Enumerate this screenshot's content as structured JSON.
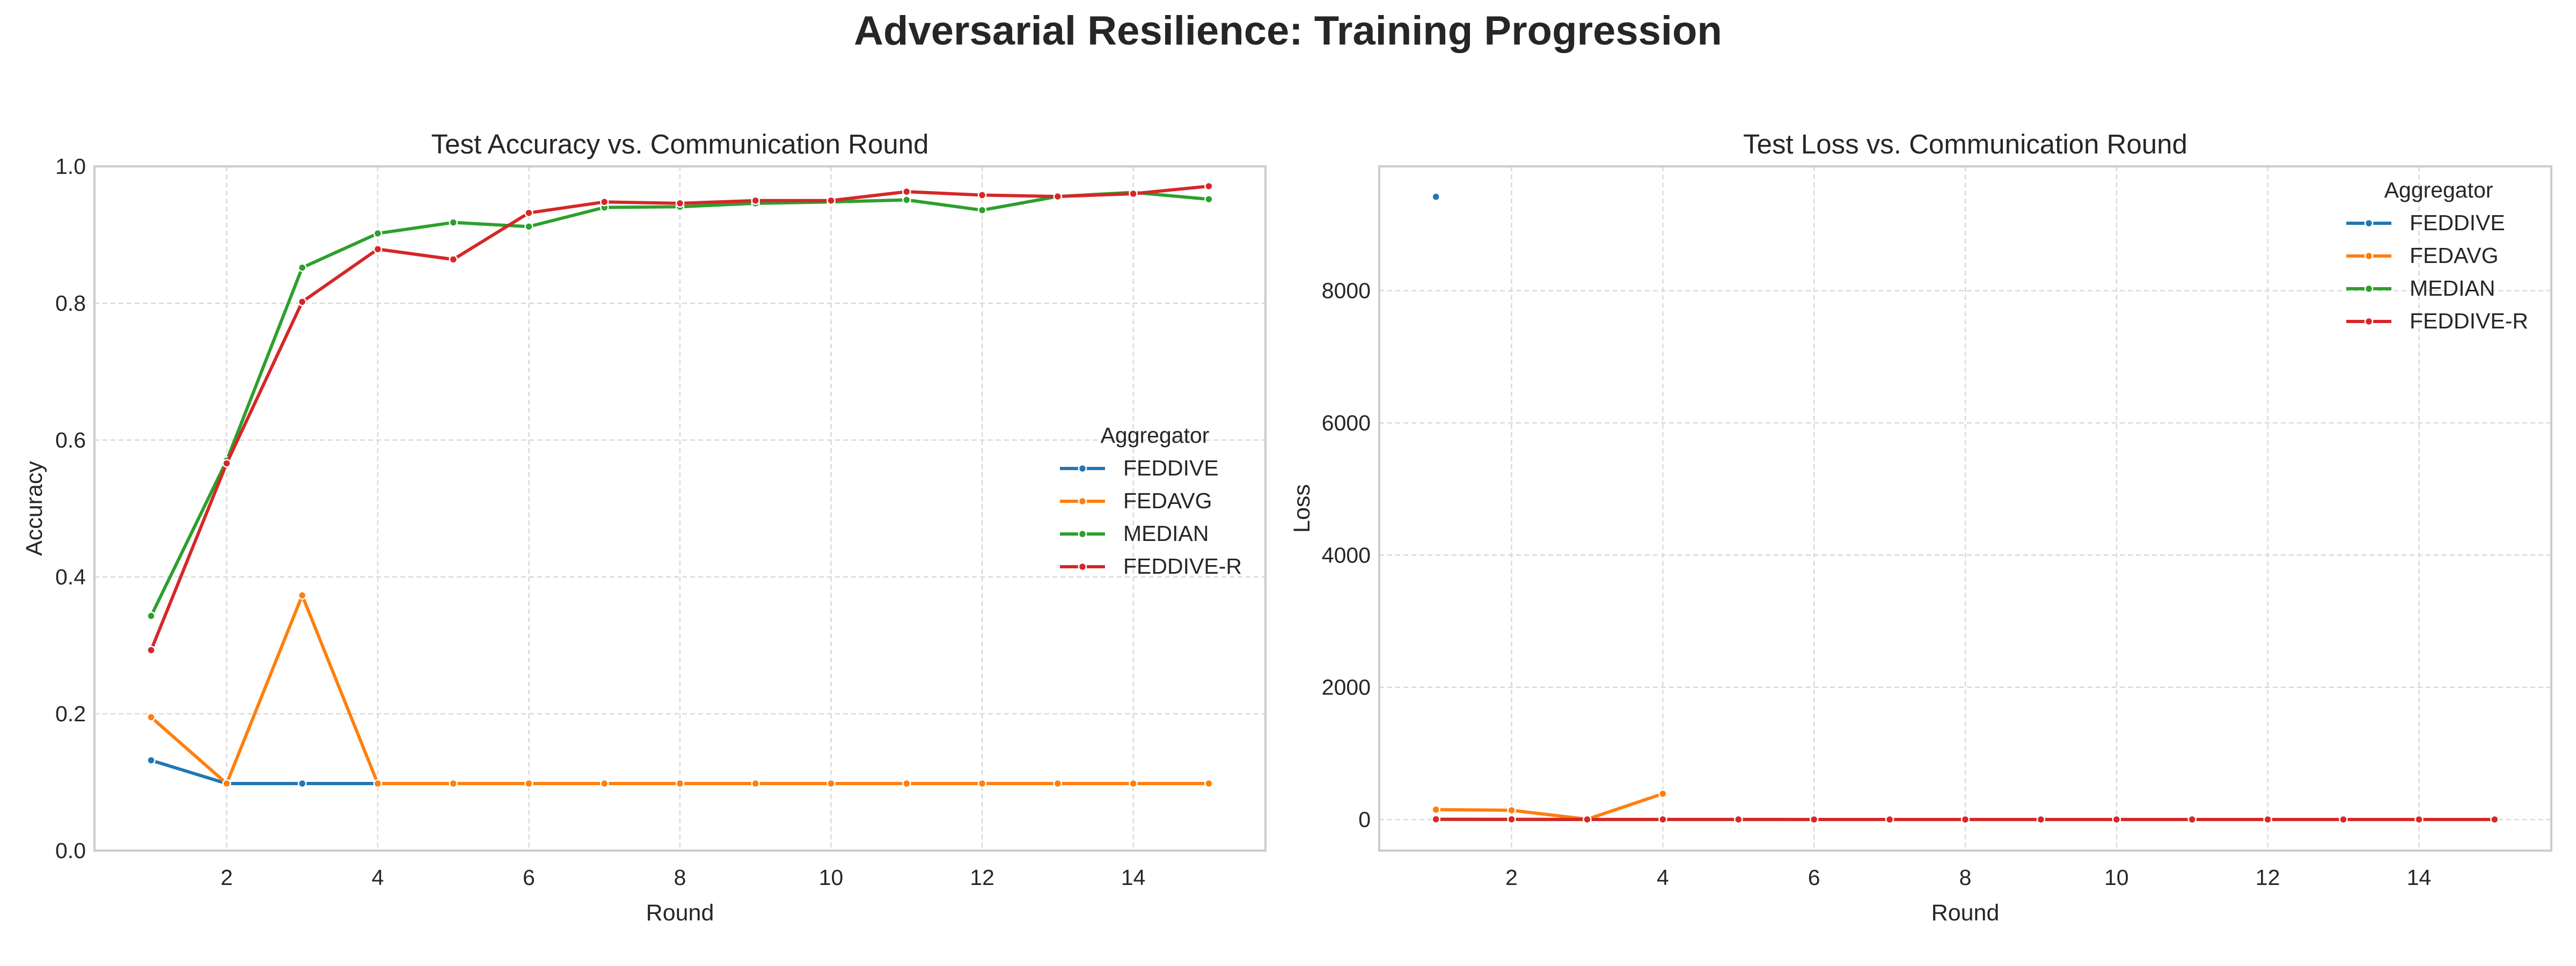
{
  "title": "Adversarial Resilience: Training Progression",
  "colors": {
    "FEDDIVE": "#1f77b4",
    "FEDAVG": "#ff7f0e",
    "MEDIAN": "#2ca02c",
    "FEDDIVE-R": "#d62728",
    "grid": "#d9d9d9",
    "frame": "#cccccc"
  },
  "chart_data": [
    {
      "type": "line",
      "title": "Test Accuracy vs. Communication Round",
      "xlabel": "Round",
      "ylabel": "Accuracy",
      "xlim": [
        0.25,
        15.75
      ],
      "ylim": [
        0,
        1.0
      ],
      "xticks": [
        2,
        4,
        6,
        8,
        10,
        12,
        14
      ],
      "yticks": [
        0.0,
        0.2,
        0.4,
        0.6,
        0.8,
        1.0
      ],
      "ytick_labels": [
        "0.0",
        "0.2",
        "0.4",
        "0.6",
        "0.8",
        "1.0"
      ],
      "grid": true,
      "legend": {
        "title": "Aggregator",
        "placement": "center-right"
      },
      "series": [
        {
          "name": "FEDDIVE",
          "x": [
            1,
            2,
            3,
            4,
            5,
            6,
            7,
            8,
            9,
            10,
            11,
            12,
            13,
            14,
            15
          ],
          "values": [
            0.132,
            0.098,
            0.098,
            0.098,
            0.098,
            0.098,
            0.098,
            0.098,
            0.098,
            0.098,
            0.098,
            0.098,
            0.098,
            0.098,
            0.098
          ]
        },
        {
          "name": "FEDAVG",
          "x": [
            1,
            2,
            3,
            4,
            5,
            6,
            7,
            8,
            9,
            10,
            11,
            12,
            13,
            14,
            15
          ],
          "values": [
            0.195,
            0.098,
            0.373,
            0.098,
            0.098,
            0.098,
            0.098,
            0.098,
            0.098,
            0.098,
            0.098,
            0.098,
            0.098,
            0.098,
            0.098
          ]
        },
        {
          "name": "MEDIAN",
          "x": [
            1,
            2,
            3,
            4,
            5,
            6,
            7,
            8,
            9,
            10,
            11,
            12,
            13,
            14,
            15
          ],
          "values": [
            0.343,
            0.57,
            0.852,
            0.902,
            0.918,
            0.912,
            0.94,
            0.941,
            0.946,
            0.948,
            0.951,
            0.936,
            0.956,
            0.962,
            0.952
          ]
        },
        {
          "name": "FEDDIVE-R",
          "x": [
            1,
            2,
            3,
            4,
            5,
            6,
            7,
            8,
            9,
            10,
            11,
            12,
            13,
            14,
            15
          ],
          "values": [
            0.293,
            0.566,
            0.802,
            0.879,
            0.864,
            0.932,
            0.948,
            0.946,
            0.95,
            0.95,
            0.963,
            0.958,
            0.956,
            0.96,
            0.971
          ]
        }
      ]
    },
    {
      "type": "line",
      "title": "Test Loss vs. Communication Round",
      "xlabel": "Round",
      "ylabel": "Loss",
      "xlim": [
        0.25,
        15.75
      ],
      "ylim": [
        -470,
        9880
      ],
      "xticks": [
        2,
        4,
        6,
        8,
        10,
        12,
        14
      ],
      "yticks": [
        0,
        2000,
        4000,
        6000,
        8000
      ],
      "ytick_labels": [
        "0",
        "2000",
        "4000",
        "6000",
        "8000"
      ],
      "grid": true,
      "legend": {
        "title": "Aggregator",
        "placement": "top-right"
      },
      "series": [
        {
          "name": "FEDDIVE",
          "x": [
            1
          ],
          "values": [
            9420
          ]
        },
        {
          "name": "FEDAVG",
          "x": [
            1,
            2,
            3,
            4
          ],
          "values": [
            150,
            140,
            5,
            390
          ]
        },
        {
          "name": "MEDIAN",
          "x": [
            1,
            2,
            3,
            4,
            5,
            6,
            7,
            8,
            9,
            10,
            11,
            12,
            13,
            14,
            15
          ],
          "values": [
            3,
            2,
            1,
            1,
            1,
            1,
            1,
            1,
            1,
            1,
            1,
            1,
            1,
            1,
            1
          ]
        },
        {
          "name": "FEDDIVE-R",
          "x": [
            1,
            2,
            3,
            4,
            5,
            6,
            7,
            8,
            9,
            10,
            11,
            12,
            13,
            14,
            15
          ],
          "values": [
            4,
            3,
            2,
            2,
            2,
            1,
            1,
            1,
            1,
            1,
            1,
            1,
            1,
            1,
            1
          ]
        }
      ]
    }
  ]
}
